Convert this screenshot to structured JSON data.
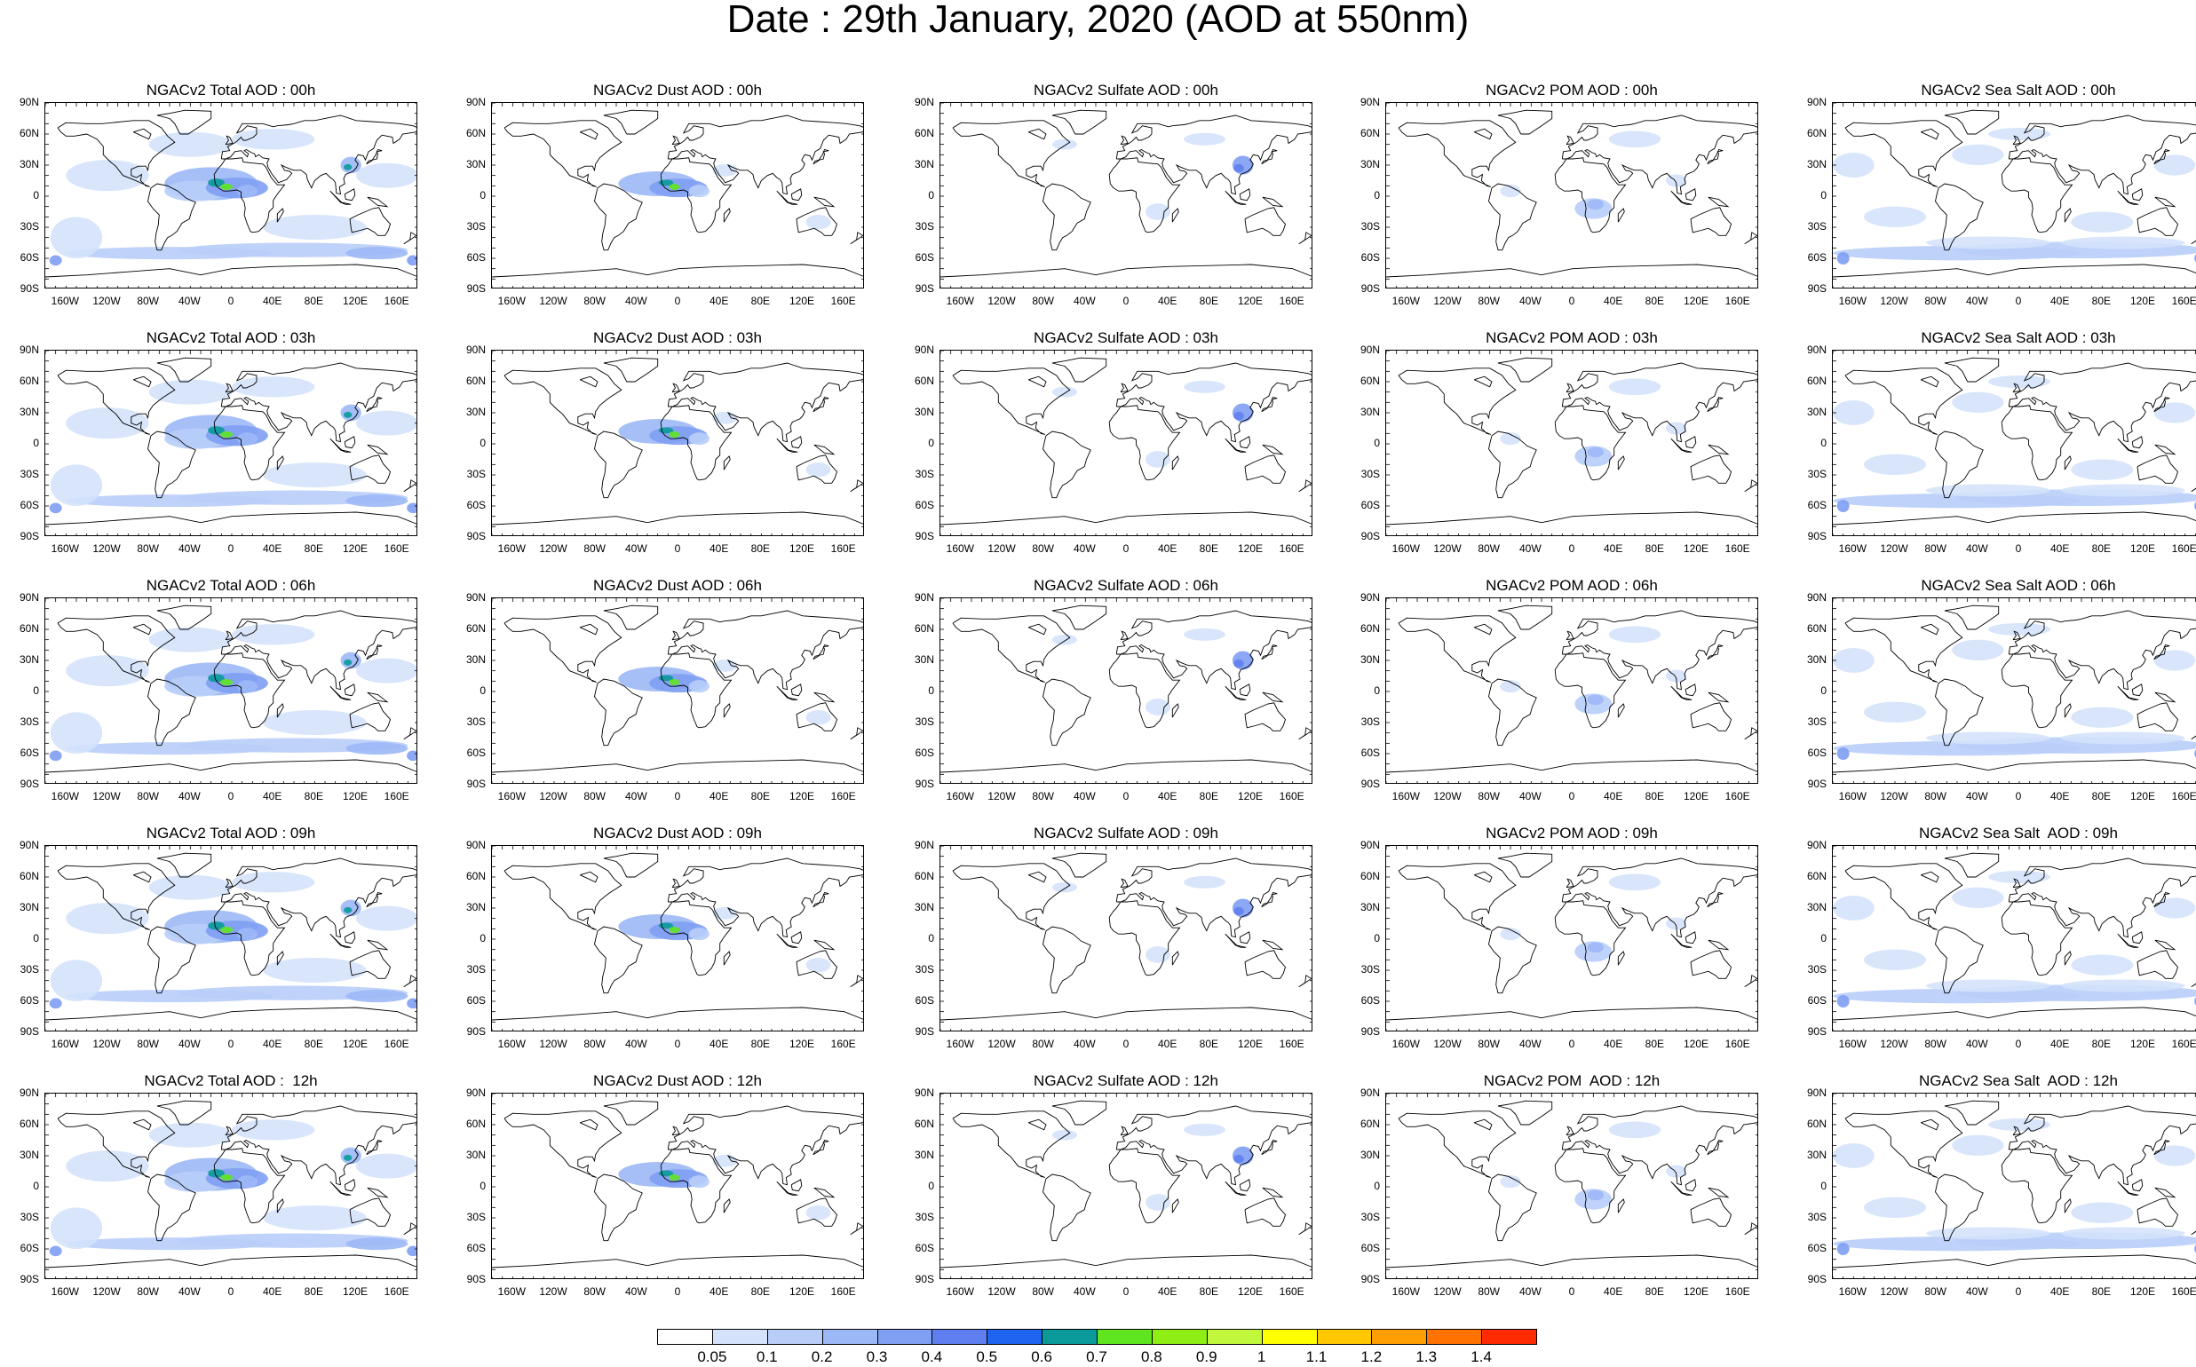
{
  "title": "Date : 29th January, 2020 (AOD at 550nm)",
  "lat_labels": [
    "90N",
    "60N",
    "30N",
    "0",
    "30S",
    "60S",
    "90S"
  ],
  "lon_labels": [
    "160W",
    "120W",
    "80W",
    "40W",
    "0",
    "40E",
    "80E",
    "120E",
    "160E"
  ],
  "panels": [
    {
      "title": "NGACv2 Total AOD : 00h",
      "species": "total"
    },
    {
      "title": "NGACv2 Dust AOD : 00h",
      "species": "dust"
    },
    {
      "title": "NGACv2 Sulfate AOD : 00h",
      "species": "sulfate"
    },
    {
      "title": "NGACv2 POM AOD : 00h",
      "species": "pom"
    },
    {
      "title": "NGACv2 Sea Salt AOD : 00h",
      "species": "seasalt"
    },
    {
      "title": "NGACv2 Total AOD : 03h",
      "species": "total"
    },
    {
      "title": "NGACv2 Dust AOD : 03h",
      "species": "dust"
    },
    {
      "title": "NGACv2 Sulfate AOD : 03h",
      "species": "sulfate"
    },
    {
      "title": "NGACv2 POM AOD : 03h",
      "species": "pom"
    },
    {
      "title": "NGACv2 Sea Salt AOD : 03h",
      "species": "seasalt"
    },
    {
      "title": "NGACv2 Total AOD : 06h",
      "species": "total"
    },
    {
      "title": "NGACv2 Dust AOD : 06h",
      "species": "dust"
    },
    {
      "title": "NGACv2 Sulfate AOD : 06h",
      "species": "sulfate"
    },
    {
      "title": "NGACv2 POM AOD : 06h",
      "species": "pom"
    },
    {
      "title": "NGACv2 Sea Salt AOD : 06h",
      "species": "seasalt"
    },
    {
      "title": "NGACv2 Total AOD : 09h",
      "species": "total"
    },
    {
      "title": "NGACv2 Dust AOD : 09h",
      "species": "dust"
    },
    {
      "title": "NGACv2 Sulfate AOD : 09h",
      "species": "sulfate"
    },
    {
      "title": "NGACv2 POM AOD : 09h",
      "species": "pom"
    },
    {
      "title": "NGACv2 Sea Salt  AOD : 09h",
      "species": "seasalt"
    },
    {
      "title": "NGACv2 Total AOD :  12h",
      "species": "total"
    },
    {
      "title": "NGACv2 Dust AOD : 12h",
      "species": "dust"
    },
    {
      "title": "NGACv2 Sulfate AOD : 12h",
      "species": "sulfate"
    },
    {
      "title": "NGACv2 POM  AOD : 12h",
      "species": "pom"
    },
    {
      "title": "NGACv2 Sea Salt  AOD : 12h",
      "species": "seasalt"
    }
  ],
  "colorbar": {
    "colors": [
      "#ffffff",
      "#d4e2fb",
      "#b8cdf8",
      "#9cb8f6",
      "#7f9ff3",
      "#5f7ff0",
      "#1e64f0",
      "#0a9a9a",
      "#5fe51e",
      "#8fef14",
      "#c2f83c",
      "#ffff00",
      "#ffc800",
      "#ff9e00",
      "#ff7200",
      "#ff2a00"
    ],
    "labels": [
      "0.05",
      "0.1",
      "0.2",
      "0.3",
      "0.4",
      "0.5",
      "0.6",
      "0.7",
      "0.8",
      "0.9",
      "1",
      "1.1",
      "1.2",
      "1.3",
      "1.4"
    ]
  }
}
